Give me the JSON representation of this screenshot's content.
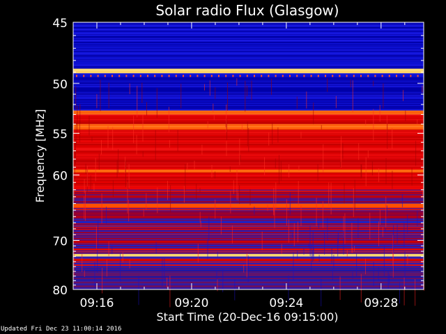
{
  "footer": {
    "updated": "Updated Fri Dec 23 11:00:14 2016"
  },
  "colors": {
    "background": "#000000",
    "axis": "#ffffff",
    "low_intensity": "#0000c8",
    "mid_intensity": "#e00000",
    "high_intensity": "#ffe080"
  },
  "chart_data": {
    "type": "heatmap",
    "title": "Solar radio Flux (Glasgow)",
    "xlabel": "Start Time (20-Dec-16 09:15:00)",
    "ylabel": "Frequency [MHz]",
    "x_ticks": [
      "09:16",
      "09:20",
      "09:24",
      "09:28"
    ],
    "x_tick_minutes": [
      1,
      5,
      9,
      13
    ],
    "xlim_minutes": [
      0,
      14.8
    ],
    "y_ticks": [
      45,
      50,
      55,
      60,
      70,
      80
    ],
    "ylim_mhz": [
      45,
      80
    ],
    "y_scale": "reciprocal",
    "grid": false,
    "colormap": "blue-red-yellow",
    "bands": [
      {
        "from": 45.0,
        "to": 48.7,
        "level": "low"
      },
      {
        "from": 48.7,
        "to": 49.1,
        "level": "peak"
      },
      {
        "from": 49.1,
        "to": 52.6,
        "level": "low"
      },
      {
        "from": 52.6,
        "to": 53.0,
        "level": "high"
      },
      {
        "from": 53.0,
        "to": 54.0,
        "level": "mid"
      },
      {
        "from": 54.0,
        "to": 54.6,
        "level": "high"
      },
      {
        "from": 54.6,
        "to": 59.3,
        "level": "mid"
      },
      {
        "from": 59.3,
        "to": 59.7,
        "level": "high"
      },
      {
        "from": 59.7,
        "to": 62.0,
        "level": "mid"
      },
      {
        "from": 62.0,
        "to": 64.0,
        "level": "mixed"
      },
      {
        "from": 64.0,
        "to": 64.6,
        "level": "high"
      },
      {
        "from": 64.6,
        "to": 72.5,
        "level": "mixed"
      },
      {
        "from": 72.5,
        "to": 73.0,
        "level": "peak"
      },
      {
        "from": 73.0,
        "to": 75.0,
        "level": "mixed"
      },
      {
        "from": 75.0,
        "to": 80.0,
        "level": "low-mixed"
      }
    ]
  }
}
